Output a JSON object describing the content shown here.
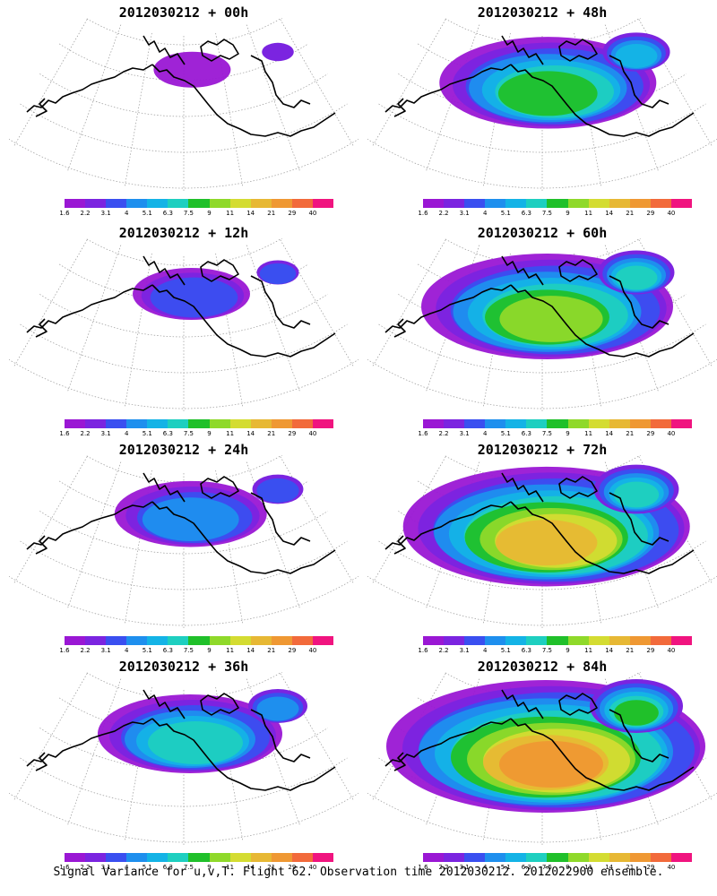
{
  "footer": "Signal Variance for u,v,T. Flight 62. Observation time 2012030212. 2012022900 ensemble.",
  "colorbar": {
    "labels": [
      "1.6",
      "2.2",
      "3.1",
      "4",
      "5.1",
      "6.3",
      "7.5",
      "9",
      "11",
      "14",
      "21",
      "29",
      "40"
    ],
    "colors": [
      "#9a17d4",
      "#7b24e0",
      "#3a4ff0",
      "#1e8fee",
      "#14b3e6",
      "#1ecfc0",
      "#20c02a",
      "#8fd92a",
      "#d4dc32",
      "#e7b834",
      "#ef9833",
      "#f26a3b",
      "#f0147f"
    ]
  },
  "panels": [
    {
      "title": "2012030212 + 00h",
      "level": 0.1
    },
    {
      "title": "2012030212 + 48h",
      "level": 0.62
    },
    {
      "title": "2012030212 + 12h",
      "level": 0.25
    },
    {
      "title": "2012030212 + 60h",
      "level": 0.75
    },
    {
      "title": "2012030212 + 24h",
      "level": 0.38
    },
    {
      "title": "2012030212 + 72h",
      "level": 0.88
    },
    {
      "title": "2012030212 + 36h",
      "level": 0.5
    },
    {
      "title": "2012030212 + 84h",
      "level": 1.0
    }
  ]
}
